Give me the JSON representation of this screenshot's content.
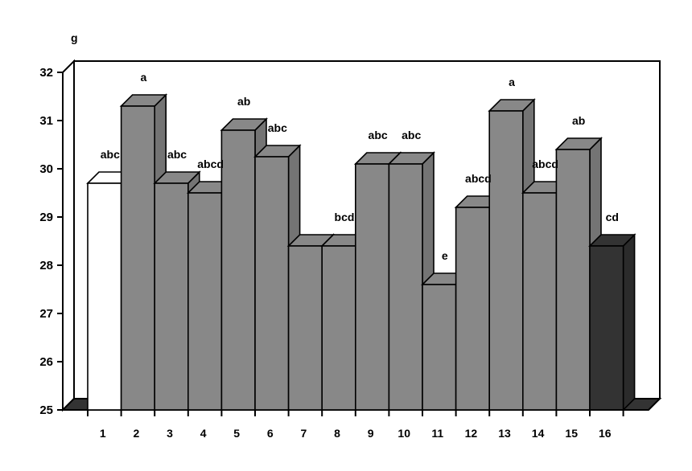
{
  "chart_data": {
    "type": "bar",
    "ylabel": "g",
    "ylim": [
      25,
      32
    ],
    "yticks": [
      25,
      26,
      27,
      28,
      29,
      30,
      31,
      32
    ],
    "grid": false,
    "legend": "none",
    "categories": [
      "1",
      "2",
      "3",
      "4",
      "5",
      "6",
      "7",
      "8",
      "9",
      "10",
      "11",
      "12",
      "13",
      "14",
      "15",
      "16"
    ],
    "values": [
      29.7,
      31.3,
      29.7,
      29.5,
      30.8,
      30.25,
      28.4,
      28.4,
      30.1,
      30.1,
      27.6,
      29.2,
      31.2,
      29.5,
      30.4,
      28.4
    ],
    "annotations": [
      "abc",
      "a",
      "abc",
      "abcd",
      "ab",
      "abc",
      "",
      "bcd",
      "abc",
      "abc",
      "e",
      "abcd",
      "a",
      "abcd",
      "ab",
      "cd"
    ],
    "bar_colors": [
      "#ffffff",
      "#888888",
      "#888888",
      "#888888",
      "#888888",
      "#888888",
      "#888888",
      "#888888",
      "#888888",
      "#888888",
      "#888888",
      "#888888",
      "#888888",
      "#888888",
      "#888888",
      "#333333"
    ]
  }
}
